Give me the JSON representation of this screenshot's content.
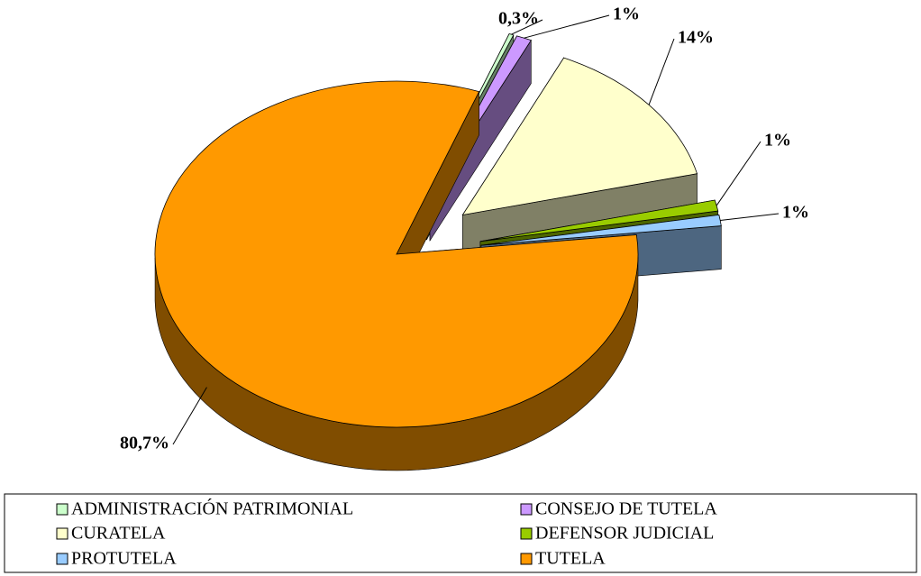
{
  "chart_data": {
    "type": "pie",
    "categories": [
      "ADMINISTRACIÓN PATRIMONIAL",
      "CONSEJO DE TUTELA",
      "CURATELA",
      "DEFENSOR JUDICIAL",
      "PROTUTELA",
      "TUTELA"
    ],
    "values": [
      0.3,
      1,
      14,
      1,
      1,
      80.7
    ],
    "value_labels": [
      "0,3%",
      "1%",
      "14%",
      "1%",
      "1%",
      "80,7%"
    ],
    "colors": [
      "#ccffcc",
      "#cc99ff",
      "#ffffcc",
      "#99cc00",
      "#99ccff",
      "#ff9900"
    ],
    "legend": "bottom"
  }
}
